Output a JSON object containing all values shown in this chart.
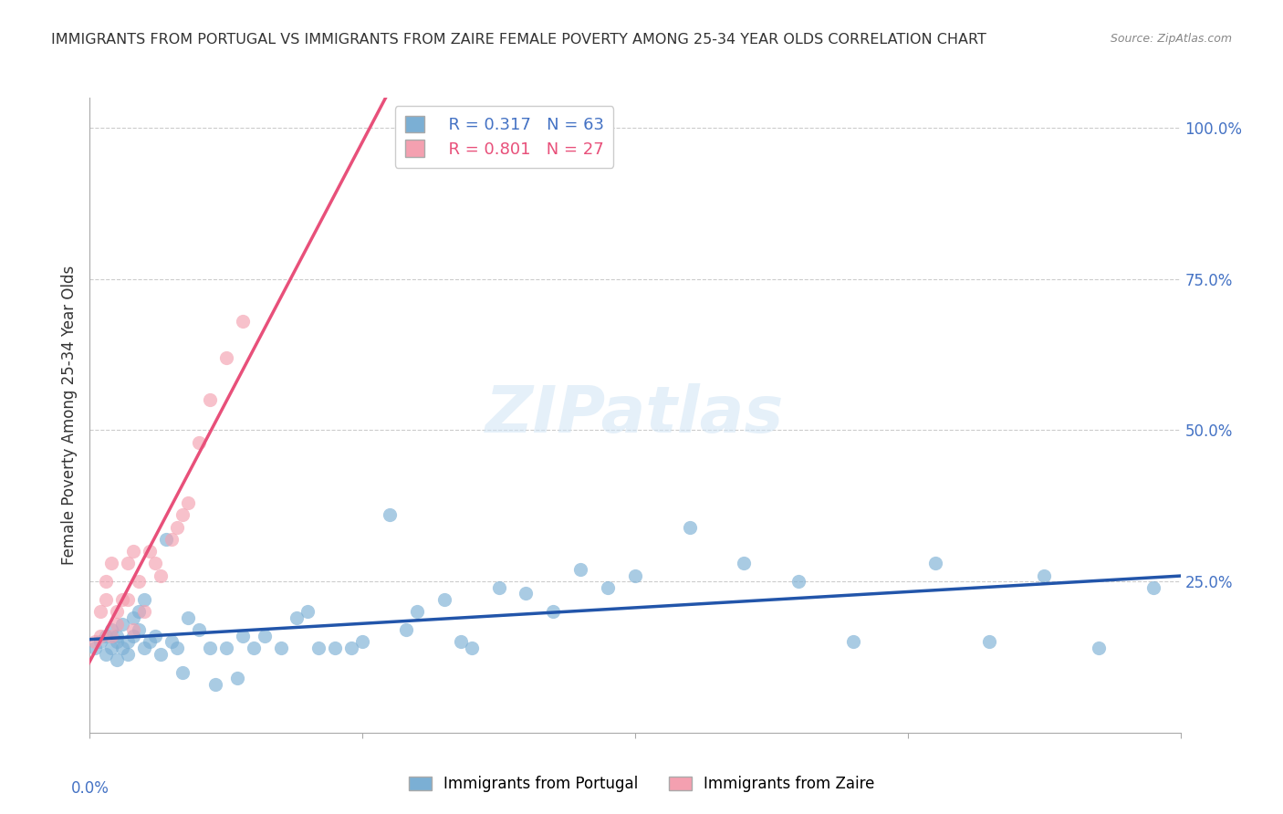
{
  "title": "IMMIGRANTS FROM PORTUGAL VS IMMIGRANTS FROM ZAIRE FEMALE POVERTY AMONG 25-34 YEAR OLDS CORRELATION CHART",
  "source": "Source: ZipAtlas.com",
  "ylabel": "Female Poverty Among 25-34 Year Olds",
  "yaxis_labels": [
    "100.0%",
    "75.0%",
    "50.0%",
    "25.0%"
  ],
  "yaxis_values": [
    1.0,
    0.75,
    0.5,
    0.25
  ],
  "R_portugal": 0.317,
  "N_portugal": 63,
  "R_zaire": 0.801,
  "N_zaire": 27,
  "color_portugal": "#7BAFD4",
  "color_zaire": "#F4A0B0",
  "line_color_portugal": "#2255AA",
  "line_color_zaire": "#E8507A",
  "watermark": "ZIPatlas",
  "portugal_x": [
    0.001,
    0.002,
    0.003,
    0.003,
    0.004,
    0.004,
    0.005,
    0.005,
    0.005,
    0.006,
    0.006,
    0.007,
    0.007,
    0.008,
    0.008,
    0.009,
    0.009,
    0.01,
    0.01,
    0.011,
    0.012,
    0.013,
    0.014,
    0.015,
    0.016,
    0.017,
    0.018,
    0.02,
    0.022,
    0.023,
    0.025,
    0.027,
    0.028,
    0.03,
    0.032,
    0.035,
    0.038,
    0.04,
    0.042,
    0.045,
    0.048,
    0.05,
    0.055,
    0.058,
    0.06,
    0.065,
    0.068,
    0.07,
    0.075,
    0.08,
    0.085,
    0.09,
    0.095,
    0.1,
    0.11,
    0.12,
    0.13,
    0.14,
    0.155,
    0.165,
    0.175,
    0.185,
    0.195
  ],
  "portugal_y": [
    0.14,
    0.15,
    0.16,
    0.13,
    0.17,
    0.14,
    0.15,
    0.12,
    0.16,
    0.18,
    0.14,
    0.15,
    0.13,
    0.19,
    0.16,
    0.17,
    0.2,
    0.14,
    0.22,
    0.15,
    0.16,
    0.13,
    0.32,
    0.15,
    0.14,
    0.1,
    0.19,
    0.17,
    0.14,
    0.08,
    0.14,
    0.09,
    0.16,
    0.14,
    0.16,
    0.14,
    0.19,
    0.2,
    0.14,
    0.14,
    0.14,
    0.15,
    0.36,
    0.17,
    0.2,
    0.22,
    0.15,
    0.14,
    0.24,
    0.23,
    0.2,
    0.27,
    0.24,
    0.26,
    0.34,
    0.28,
    0.25,
    0.15,
    0.28,
    0.15,
    0.26,
    0.14,
    0.24
  ],
  "zaire_x": [
    0.001,
    0.002,
    0.002,
    0.003,
    0.003,
    0.004,
    0.004,
    0.005,
    0.005,
    0.006,
    0.007,
    0.007,
    0.008,
    0.008,
    0.009,
    0.01,
    0.011,
    0.012,
    0.013,
    0.015,
    0.016,
    0.017,
    0.018,
    0.02,
    0.022,
    0.025,
    0.028
  ],
  "zaire_y": [
    0.15,
    0.16,
    0.2,
    0.22,
    0.25,
    0.16,
    0.28,
    0.18,
    0.2,
    0.22,
    0.28,
    0.22,
    0.3,
    0.17,
    0.25,
    0.2,
    0.3,
    0.28,
    0.26,
    0.32,
    0.34,
    0.36,
    0.38,
    0.48,
    0.55,
    0.62,
    0.68
  ],
  "xlim": [
    0.0,
    0.2
  ],
  "ylim": [
    0.0,
    1.05
  ],
  "background_color": "#FFFFFF",
  "grid_color": "#CCCCCC"
}
